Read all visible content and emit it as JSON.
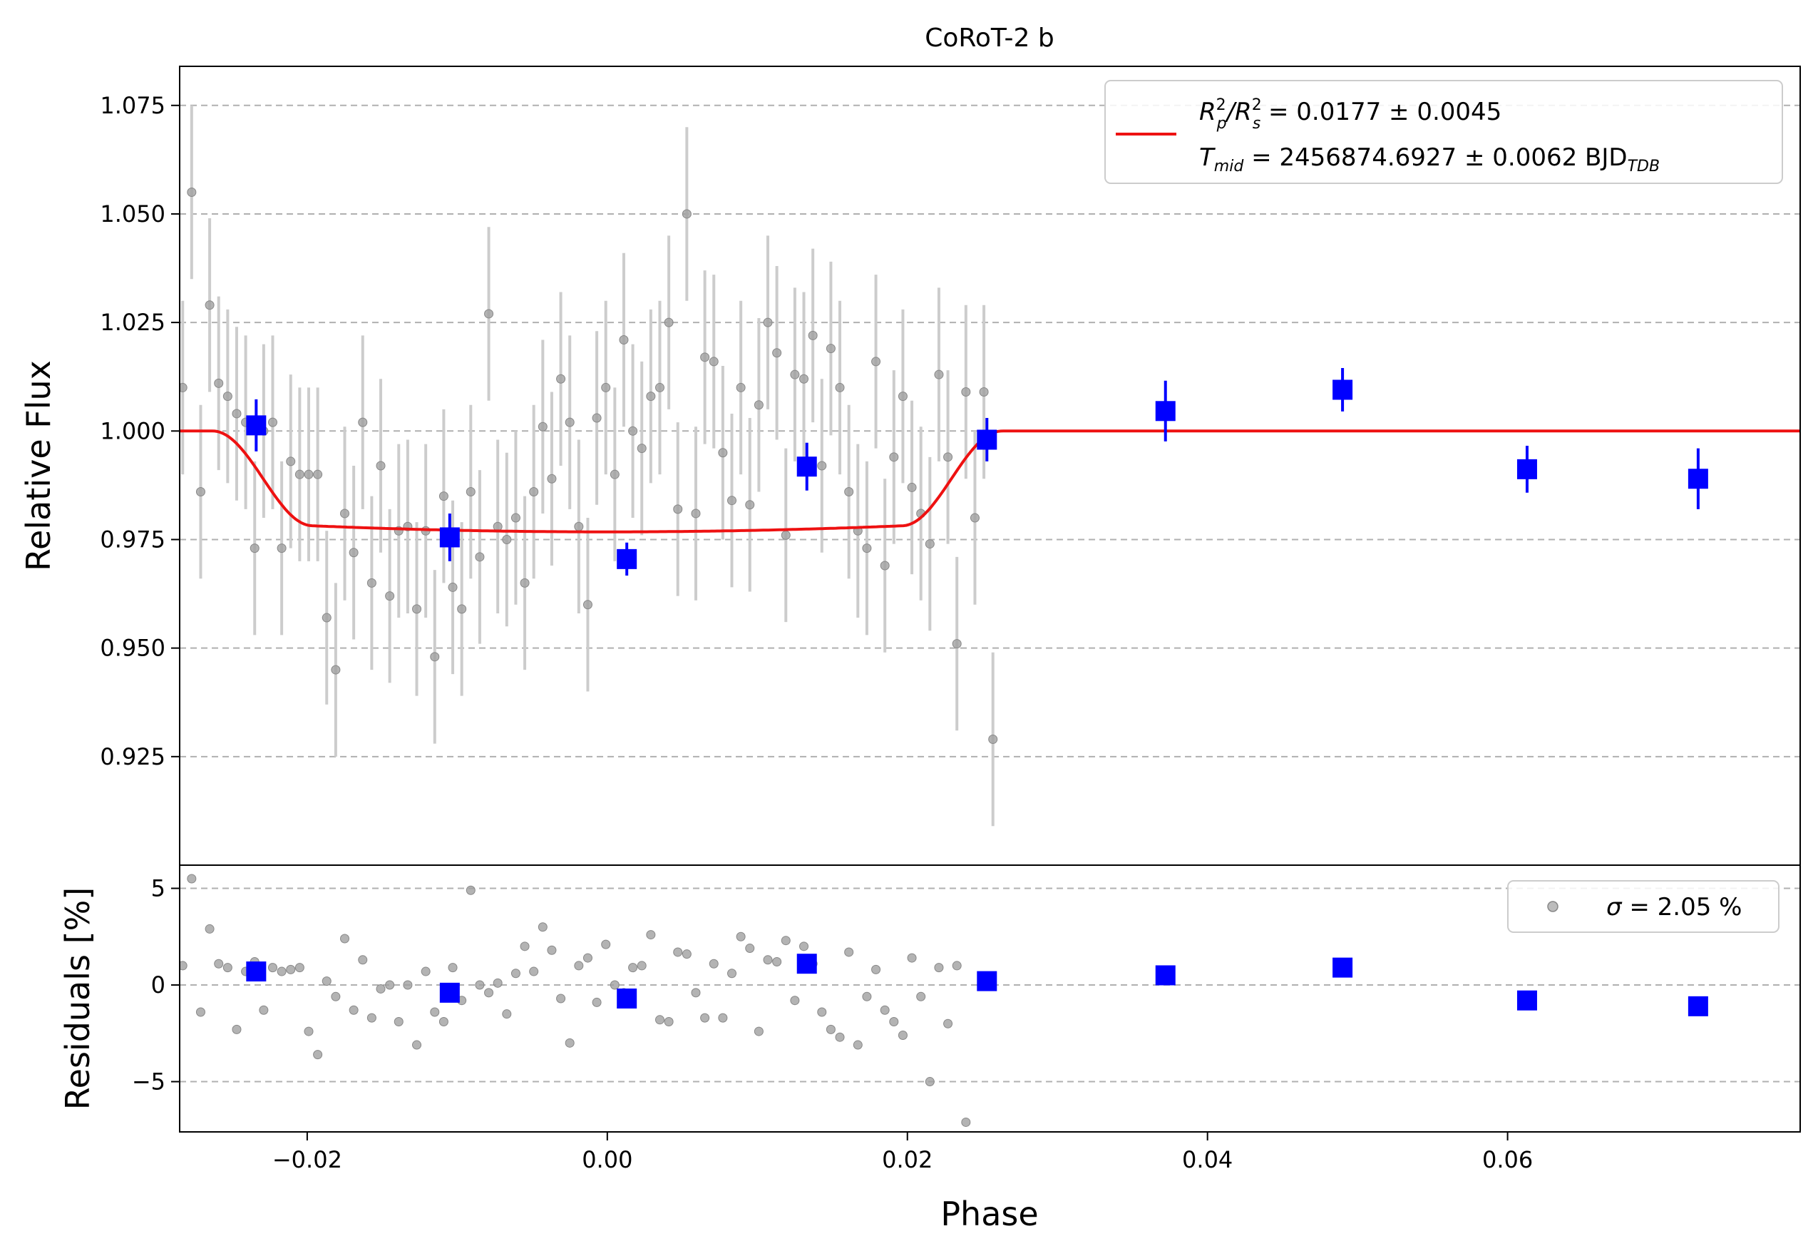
{
  "chart_data": [
    {
      "type": "scatter",
      "panel": "main",
      "title": "CoRoT-2 b",
      "xlabel": "",
      "ylabel": "Relative Flux",
      "xlim": [
        -0.0285,
        0.0795
      ],
      "ylim": [
        0.9,
        1.084
      ],
      "yticks": [
        "1.075",
        "1.050",
        "1.025",
        "1.000",
        "0.975",
        "0.950",
        "0.925"
      ],
      "ytick_values": [
        1.075,
        1.05,
        1.025,
        1.0,
        0.975,
        0.95,
        0.925
      ],
      "grid": "y-dashed",
      "legend_position": "top-right",
      "legend": {
        "line1_prefix": "R",
        "line1_sup1": "2",
        "line1_sub1": "p",
        "line1_slash": "/R",
        "line1_sup2": "2",
        "line1_sub2": "s",
        "line1_value": " = 0.0177 ± 0.0045",
        "line2_prefix": "T",
        "line2_sub": "mid",
        "line2_value": " = 2456874.6927 ± 0.0062 BJD",
        "line2_unit_sub": "TDB"
      },
      "raw_error": 0.02,
      "raw_points": [
        [
          -0.0288,
          0.986
        ],
        [
          -0.0283,
          1.01
        ],
        [
          -0.0277,
          1.055
        ],
        [
          -0.0271,
          0.986
        ],
        [
          -0.0265,
          1.029
        ],
        [
          -0.0259,
          1.011
        ],
        [
          -0.0253,
          1.008
        ],
        [
          -0.0247,
          1.004
        ],
        [
          -0.0241,
          1.002
        ],
        [
          -0.0235,
          0.973
        ],
        [
          -0.0229,
          1.0
        ],
        [
          -0.0223,
          1.002
        ],
        [
          -0.0217,
          0.973
        ],
        [
          -0.0211,
          0.993
        ],
        [
          -0.0205,
          0.99
        ],
        [
          -0.0199,
          0.99
        ],
        [
          -0.0193,
          0.99
        ],
        [
          -0.0187,
          0.957
        ],
        [
          -0.0181,
          0.945
        ],
        [
          -0.0175,
          0.981
        ],
        [
          -0.0169,
          0.972
        ],
        [
          -0.0163,
          1.002
        ],
        [
          -0.0157,
          0.965
        ],
        [
          -0.0151,
          0.992
        ],
        [
          -0.0145,
          0.962
        ],
        [
          -0.0139,
          0.977
        ],
        [
          -0.0133,
          0.978
        ],
        [
          -0.0127,
          0.959
        ],
        [
          -0.0121,
          0.977
        ],
        [
          -0.0115,
          0.948
        ],
        [
          -0.0109,
          0.985
        ],
        [
          -0.0103,
          0.964
        ],
        [
          -0.0097,
          0.959
        ],
        [
          -0.0091,
          0.986
        ],
        [
          -0.0085,
          0.971
        ],
        [
          -0.0079,
          1.027
        ],
        [
          -0.0073,
          0.978
        ],
        [
          -0.0067,
          0.975
        ],
        [
          -0.0061,
          0.98
        ],
        [
          -0.0055,
          0.965
        ],
        [
          -0.0049,
          0.986
        ],
        [
          -0.0043,
          1.001
        ],
        [
          -0.0037,
          0.989
        ],
        [
          -0.0031,
          1.012
        ],
        [
          -0.0025,
          1.002
        ],
        [
          -0.0019,
          0.978
        ],
        [
          -0.0013,
          0.96
        ],
        [
          -0.0007,
          1.003
        ],
        [
          -0.0001,
          1.01
        ],
        [
          0.0005,
          0.99
        ],
        [
          0.0011,
          1.021
        ],
        [
          0.0017,
          1.0
        ],
        [
          0.0023,
          0.996
        ],
        [
          0.0029,
          1.008
        ],
        [
          0.0035,
          1.01
        ],
        [
          0.0041,
          1.025
        ],
        [
          0.0047,
          0.982
        ],
        [
          0.0053,
          1.05
        ],
        [
          0.0059,
          0.981
        ],
        [
          0.0065,
          1.017
        ],
        [
          0.0071,
          1.016
        ],
        [
          0.0077,
          0.995
        ],
        [
          0.0083,
          0.984
        ],
        [
          0.0089,
          1.01
        ],
        [
          0.0095,
          0.983
        ],
        [
          0.0101,
          1.006
        ],
        [
          0.0107,
          1.025
        ],
        [
          0.0113,
          1.018
        ],
        [
          0.0119,
          0.976
        ],
        [
          0.0125,
          1.013
        ],
        [
          0.0131,
          1.012
        ],
        [
          0.0137,
          1.022
        ],
        [
          0.0143,
          0.992
        ],
        [
          0.0149,
          1.019
        ],
        [
          0.0155,
          1.01
        ],
        [
          0.0161,
          0.986
        ],
        [
          0.0167,
          0.977
        ],
        [
          0.0173,
          0.973
        ],
        [
          0.0179,
          1.016
        ],
        [
          0.0185,
          0.969
        ],
        [
          0.0191,
          0.994
        ],
        [
          0.0197,
          1.008
        ],
        [
          0.0203,
          0.987
        ],
        [
          0.0209,
          0.981
        ],
        [
          0.0215,
          0.974
        ],
        [
          0.0221,
          1.013
        ],
        [
          0.0227,
          0.994
        ],
        [
          0.0233,
          0.951
        ],
        [
          0.0239,
          1.009
        ],
        [
          0.0245,
          0.98
        ],
        [
          0.0251,
          1.009
        ],
        [
          0.0257,
          0.929
        ]
      ],
      "binned_points": [
        {
          "x": -0.0234,
          "y": 1.0013,
          "err": 0.006
        },
        {
          "x": -0.0105,
          "y": 0.9755,
          "err": 0.0055
        },
        {
          "x": 0.0013,
          "y": 0.9705,
          "err": 0.0038
        },
        {
          "x": 0.0133,
          "y": 0.9918,
          "err": 0.0055
        },
        {
          "x": 0.0253,
          "y": 0.998,
          "err": 0.005
        },
        {
          "x": 0.0372,
          "y": 1.0046,
          "err": 0.007
        },
        {
          "x": 0.049,
          "y": 1.0095,
          "err": 0.005
        },
        {
          "x": 0.0613,
          "y": 0.9912,
          "err": 0.0054
        },
        {
          "x": 0.0727,
          "y": 0.989,
          "err": 0.007
        }
      ],
      "model": {
        "baseline": 1.0,
        "depth": 0.0177,
        "t1": -0.0263,
        "t2": -0.0197,
        "t3": 0.0197,
        "t4": 0.0263,
        "limb_darkening": 0.25,
        "color": "#ee1111"
      }
    },
    {
      "type": "scatter",
      "panel": "residuals",
      "xlabel": "Phase",
      "ylabel": "Residuals [%]",
      "xlim": [
        -0.0285,
        0.0795
      ],
      "ylim": [
        -7.6,
        6.2
      ],
      "xticks": [
        "−0.02",
        "0.00",
        "0.02",
        "0.04",
        "0.06"
      ],
      "xtick_values": [
        -0.02,
        0.0,
        0.02,
        0.04,
        0.06
      ],
      "yticks": [
        "5",
        "0",
        "−5"
      ],
      "ytick_values": [
        5,
        0,
        -5
      ],
      "grid": "y-dashed",
      "legend_position": "top-right",
      "legend": {
        "sigma_symbol": "σ",
        "sigma_text": " = 2.05 %"
      },
      "raw_points": [
        [
          -0.0288,
          -1.4
        ],
        [
          -0.0283,
          1.0
        ],
        [
          -0.0277,
          5.5
        ],
        [
          -0.0271,
          -1.4
        ],
        [
          -0.0265,
          2.9
        ],
        [
          -0.0259,
          1.1
        ],
        [
          -0.0253,
          0.9
        ],
        [
          -0.0247,
          -2.3
        ],
        [
          -0.0241,
          0.7
        ],
        [
          -0.0235,
          1.2
        ],
        [
          -0.0229,
          -1.3
        ],
        [
          -0.0223,
          0.9
        ],
        [
          -0.0217,
          0.7
        ],
        [
          -0.0211,
          0.8
        ],
        [
          -0.0205,
          0.9
        ],
        [
          -0.0199,
          -2.4
        ],
        [
          -0.0193,
          -3.6
        ],
        [
          -0.0187,
          0.2
        ],
        [
          -0.0181,
          -0.6
        ],
        [
          -0.0175,
          2.4
        ],
        [
          -0.0169,
          -1.3
        ],
        [
          -0.0163,
          1.3
        ],
        [
          -0.0157,
          -1.7
        ],
        [
          -0.0151,
          -0.2
        ],
        [
          -0.0145,
          0.0
        ],
        [
          -0.0139,
          -1.9
        ],
        [
          -0.0133,
          0.0
        ],
        [
          -0.0127,
          -3.1
        ],
        [
          -0.0121,
          0.7
        ],
        [
          -0.0115,
          -1.4
        ],
        [
          -0.0109,
          -1.9
        ],
        [
          -0.0103,
          0.9
        ],
        [
          -0.0097,
          -0.8
        ],
        [
          -0.0091,
          4.9
        ],
        [
          -0.0085,
          0.0
        ],
        [
          -0.0079,
          -0.4
        ],
        [
          -0.0073,
          0.1
        ],
        [
          -0.0067,
          -1.5
        ],
        [
          -0.0061,
          0.6
        ],
        [
          -0.0055,
          2.0
        ],
        [
          -0.0049,
          0.7
        ],
        [
          -0.0043,
          3.0
        ],
        [
          -0.0037,
          1.8
        ],
        [
          -0.0031,
          -0.7
        ],
        [
          -0.0025,
          -3.0
        ],
        [
          -0.0019,
          1.0
        ],
        [
          -0.0013,
          1.4
        ],
        [
          -0.0007,
          -0.9
        ],
        [
          -0.0001,
          2.1
        ],
        [
          0.0005,
          0.0
        ],
        [
          0.0011,
          -0.4
        ],
        [
          0.0017,
          0.9
        ],
        [
          0.0023,
          1.0
        ],
        [
          0.0029,
          2.6
        ],
        [
          0.0035,
          -1.8
        ],
        [
          0.0041,
          -1.9
        ],
        [
          0.0047,
          1.7
        ],
        [
          0.0053,
          1.6
        ],
        [
          0.0059,
          -0.4
        ],
        [
          0.0065,
          -1.7
        ],
        [
          0.0071,
          1.1
        ],
        [
          0.0077,
          -1.7
        ],
        [
          0.0083,
          0.6
        ],
        [
          0.0089,
          2.5
        ],
        [
          0.0095,
          1.9
        ],
        [
          0.0101,
          -2.4
        ],
        [
          0.0107,
          1.3
        ],
        [
          0.0113,
          1.2
        ],
        [
          0.0119,
          2.3
        ],
        [
          0.0125,
          -0.8
        ],
        [
          0.0131,
          2.0
        ],
        [
          0.0137,
          1.1
        ],
        [
          0.0143,
          -1.4
        ],
        [
          0.0149,
          -2.3
        ],
        [
          0.0155,
          -2.7
        ],
        [
          0.0161,
          1.7
        ],
        [
          0.0167,
          -3.1
        ],
        [
          0.0173,
          -0.6
        ],
        [
          0.0179,
          0.8
        ],
        [
          0.0185,
          -1.3
        ],
        [
          0.0191,
          -1.9
        ],
        [
          0.0197,
          -2.6
        ],
        [
          0.0203,
          1.4
        ],
        [
          0.0209,
          -0.6
        ],
        [
          0.0215,
          -5.0
        ],
        [
          0.0221,
          0.9
        ],
        [
          0.0227,
          -2.0
        ],
        [
          0.0233,
          1.0
        ],
        [
          0.0239,
          -7.1
        ]
      ],
      "binned_points": [
        {
          "x": -0.0234,
          "y": 0.7
        },
        {
          "x": -0.0105,
          "y": -0.4
        },
        {
          "x": 0.0013,
          "y": -0.7
        },
        {
          "x": 0.0133,
          "y": 1.1
        },
        {
          "x": 0.0253,
          "y": 0.2
        },
        {
          "x": 0.0372,
          "y": 0.5
        },
        {
          "x": 0.049,
          "y": 0.9
        },
        {
          "x": 0.0613,
          "y": -0.8
        },
        {
          "x": 0.0727,
          "y": -1.1
        }
      ]
    }
  ],
  "colors": {
    "raw_points": "#a0a0a0",
    "raw_errorbars": "#cccccc",
    "binned": "#0000ff",
    "model": "#ee1111",
    "grid": "#b0b0b0"
  }
}
